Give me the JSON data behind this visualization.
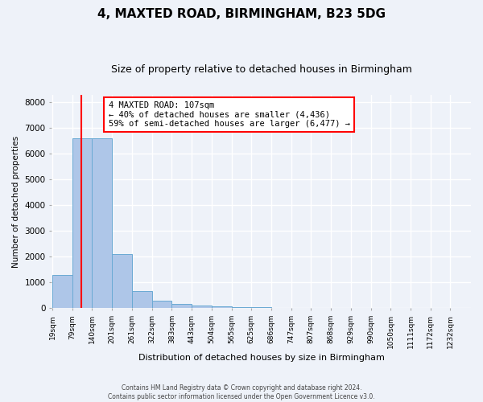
{
  "title1": "4, MAXTED ROAD, BIRMINGHAM, B23 5DG",
  "title2": "Size of property relative to detached houses in Birmingham",
  "xlabel": "Distribution of detached houses by size in Birmingham",
  "ylabel": "Number of detached properties",
  "bins": [
    "19sqm",
    "79sqm",
    "140sqm",
    "201sqm",
    "261sqm",
    "322sqm",
    "383sqm",
    "443sqm",
    "504sqm",
    "565sqm",
    "625sqm",
    "686sqm",
    "747sqm",
    "807sqm",
    "868sqm",
    "929sqm",
    "990sqm",
    "1050sqm",
    "1111sqm",
    "1172sqm",
    "1232sqm"
  ],
  "bin_edges": [
    19,
    79,
    140,
    201,
    261,
    322,
    383,
    443,
    504,
    565,
    625,
    686,
    747,
    807,
    868,
    929,
    990,
    1050,
    1111,
    1172,
    1232
  ],
  "bin_width": 61,
  "values": [
    1300,
    6600,
    6600,
    2100,
    650,
    280,
    150,
    100,
    65,
    50,
    50,
    0,
    0,
    0,
    0,
    0,
    0,
    0,
    0,
    0,
    0
  ],
  "bar_color": "#aec6e8",
  "bar_edge_color": "#6aaad4",
  "red_line_x": 107,
  "annotation_line1": "4 MAXTED ROAD: 107sqm",
  "annotation_line2": "← 40% of detached houses are smaller (4,436)",
  "annotation_line3": "59% of semi-detached houses are larger (6,477) →",
  "annotation_box_color": "white",
  "annotation_box_edge_color": "red",
  "ylim": [
    0,
    8300
  ],
  "yticks": [
    0,
    1000,
    2000,
    3000,
    4000,
    5000,
    6000,
    7000,
    8000
  ],
  "footer1": "Contains HM Land Registry data © Crown copyright and database right 2024.",
  "footer2": "Contains public sector information licensed under the Open Government Licence v3.0.",
  "background_color": "#eef2f9",
  "grid_color": "white",
  "title1_fontsize": 11,
  "title2_fontsize": 9,
  "xlabel_fontsize": 8,
  "ylabel_fontsize": 7.5
}
